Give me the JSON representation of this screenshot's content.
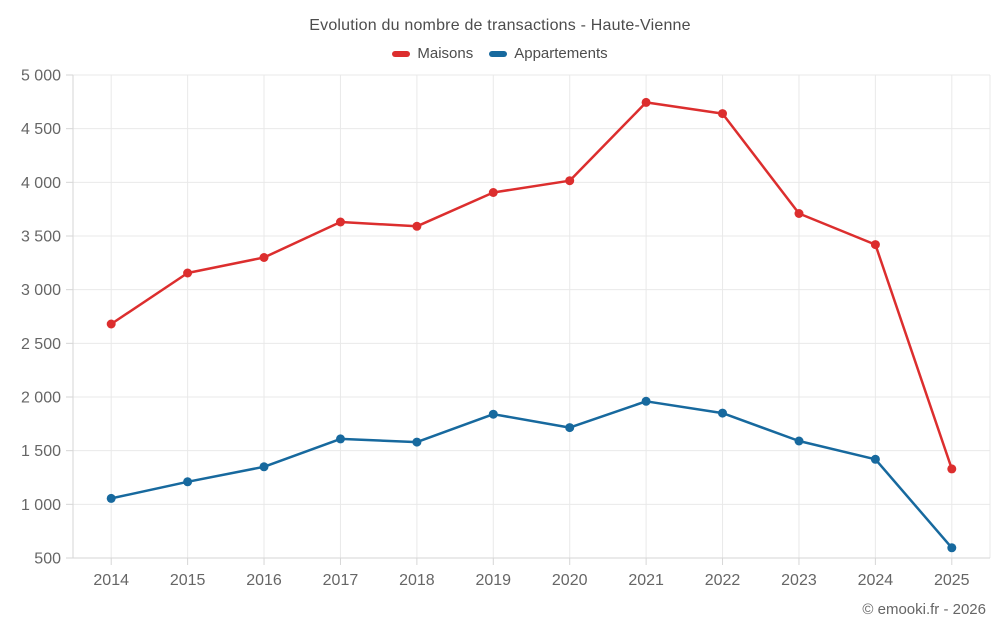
{
  "title": "Evolution du nombre de transactions - Haute-Vienne",
  "copyright": "© emooki.fr - 2026",
  "colors": {
    "maisons": "#dc2e2e",
    "appartements": "#17699e",
    "grid": "#e9e9e9",
    "axis": "#d6d6d6",
    "title_text": "#4d4d4d",
    "tick_text": "#666666",
    "background": "#ffffff"
  },
  "chart_data": {
    "type": "line",
    "x": [
      "2014",
      "2015",
      "2016",
      "2017",
      "2018",
      "2019",
      "2020",
      "2021",
      "2022",
      "2023",
      "2024",
      "2025"
    ],
    "series": [
      {
        "name": "Maisons",
        "color": "#dc2e2e",
        "values": [
          2680,
          3155,
          3300,
          3630,
          3590,
          3905,
          4015,
          4745,
          4640,
          3710,
          3420,
          1330
        ]
      },
      {
        "name": "Appartements",
        "color": "#17699e",
        "values": [
          1055,
          1210,
          1350,
          1610,
          1580,
          1840,
          1715,
          1960,
          1850,
          1590,
          1420,
          595
        ]
      }
    ],
    "ylim": [
      500,
      5000
    ],
    "ytick_step": 500,
    "ytick_labels": [
      "500",
      "1 000",
      "1 500",
      "2 000",
      "2 500",
      "3 000",
      "3 500",
      "4 000",
      "4 500",
      "5 000"
    ],
    "grid": true,
    "legend_position": "top",
    "marker": "circle"
  }
}
